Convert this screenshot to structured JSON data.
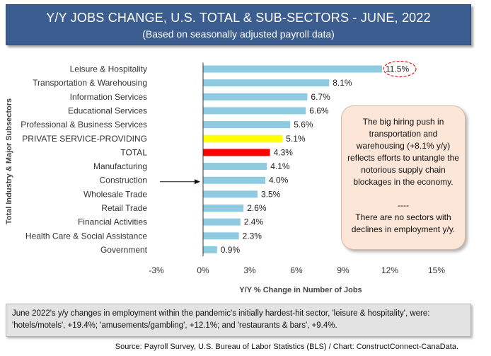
{
  "header": {
    "title": "Y/Y JOBS CHANGE, U.S. TOTAL & SUB-SECTORS - JUNE, 2022",
    "subtitle": "(Based on seasonally adjusted payroll data)"
  },
  "chart_data": {
    "type": "bar",
    "orientation": "horizontal",
    "categories": [
      "Leisure & Hospitality",
      "Transportation & Warehousing",
      "Information Services",
      "Educational Services",
      "Professional & Business Services",
      "PRIVATE SERVICE-PROVIDING",
      "TOTAL",
      "Manufacturing",
      "Construction",
      "Wholesale Trade",
      "Retail Trade",
      "Financial Activities",
      "Health Care & Social Assistance",
      "Government"
    ],
    "values": [
      11.5,
      8.1,
      6.7,
      6.6,
      5.6,
      5.1,
      4.3,
      4.1,
      4.0,
      3.5,
      2.6,
      2.4,
      2.3,
      0.9
    ],
    "value_labels": [
      "11.5%",
      "8.1%",
      "6.7%",
      "6.6%",
      "5.6%",
      "5.1%",
      "4.3%",
      "4.1%",
      "4.0%",
      "3.5%",
      "2.6%",
      "2.4%",
      "2.3%",
      "0.9%"
    ],
    "bar_colors": [
      "#8ecbe0",
      "#8ecbe0",
      "#8ecbe0",
      "#8ecbe0",
      "#8ecbe0",
      "#ffff00",
      "#ff0000",
      "#8ecbe0",
      "#8ecbe0",
      "#8ecbe0",
      "#8ecbe0",
      "#8ecbe0",
      "#8ecbe0",
      "#8ecbe0"
    ],
    "xlim": [
      -3,
      15
    ],
    "xticks": [
      -3,
      0,
      3,
      6,
      9,
      12,
      15
    ],
    "xtick_labels": [
      "-3%",
      "0%",
      "3%",
      "6%",
      "9%",
      "12%",
      "15%"
    ],
    "xlabel": "Y/Y % Change in Number of Jobs",
    "ylabel": "Total Industry & Major Subsectors",
    "grid": false,
    "highlight_circle_category": "Leisure & Hospitality",
    "arrow_category": "Construction"
  },
  "callout": {
    "text1": "The big hiring push in transportation and warehousing (+8.1% y/y) reflects efforts to untangle the notorious supply chain blockages in the economy.",
    "separator": "----",
    "text2": "There are no sectors with declines in employment y/y."
  },
  "note": {
    "text": "June 2022's y/y changes in employment within the pandemic's initially hardest-hit sector, 'leisure & hospitality', were: 'hotels/motels', +19.4%; 'amusements/gambling', +12.1%; and 'restaurants & bars', +9.4%."
  },
  "source": {
    "text": "Source: Payroll Survey, U.S. Bureau of Labor Statistics (BLS) / Chart: ConstructConnect-CanaData."
  },
  "colors": {
    "title_bg": "#3b5d8f",
    "bar_default": "#8ecbe0",
    "bar_private": "#ffff00",
    "bar_total": "#ff0000",
    "callout_bg": "#fbe6d8",
    "note_bg": "#e3e3e3",
    "highlight_circle": "#d9211e"
  }
}
